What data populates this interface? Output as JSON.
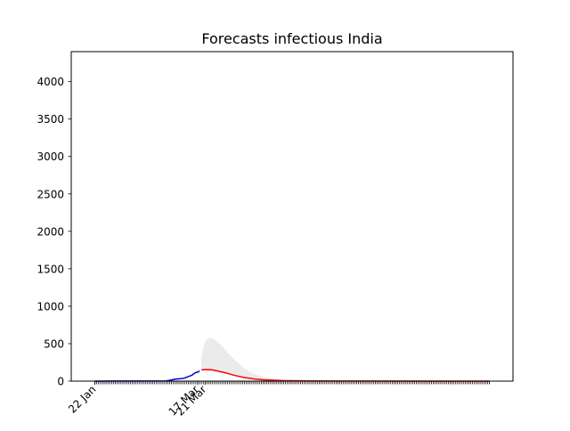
{
  "chart_data": {
    "type": "line",
    "title": "Forecasts infectious India",
    "xlabel": "",
    "ylabel": "",
    "x_range": [
      "2020-01-22",
      "2020-08-20"
    ],
    "ylim": [
      0,
      4400
    ],
    "y_ticks": [
      0,
      500,
      1000,
      1500,
      2000,
      2500,
      3000,
      3500,
      4000
    ],
    "x_ticks": [
      {
        "date": "2020-01-22",
        "label": "22 Jan"
      },
      {
        "date": "2020-03-17",
        "label": "17 Mar"
      },
      {
        "date": "2020-03-21",
        "label": "21 Mar"
      }
    ],
    "grid": false,
    "legend": "none",
    "minor_ticks": "daily",
    "series": [
      {
        "role": "observed",
        "color": "#0000cc",
        "points": [
          [
            "2020-01-22",
            0
          ],
          [
            "2020-02-01",
            1
          ],
          [
            "2020-02-15",
            2
          ],
          [
            "2020-02-29",
            3
          ],
          [
            "2020-03-02",
            10
          ],
          [
            "2020-03-05",
            27
          ],
          [
            "2020-03-08",
            32
          ],
          [
            "2020-03-10",
            42
          ],
          [
            "2020-03-12",
            60
          ],
          [
            "2020-03-14",
            80
          ],
          [
            "2020-03-15",
            100
          ],
          [
            "2020-03-16",
            115
          ],
          [
            "2020-03-17",
            120
          ],
          [
            "2020-03-18",
            137
          ]
        ]
      },
      {
        "role": "forecast",
        "color": "#ff0000",
        "points": [
          [
            "2020-03-19",
            150
          ],
          [
            "2020-03-21",
            155
          ],
          [
            "2020-03-24",
            153
          ],
          [
            "2020-03-27",
            140
          ],
          [
            "2020-04-01",
            110
          ],
          [
            "2020-04-06",
            75
          ],
          [
            "2020-04-11",
            48
          ],
          [
            "2020-04-16",
            30
          ],
          [
            "2020-04-21",
            18
          ],
          [
            "2020-05-01",
            8
          ],
          [
            "2020-05-16",
            3
          ],
          [
            "2020-06-05",
            1
          ],
          [
            "2020-08-20",
            0
          ]
        ]
      }
    ],
    "band": {
      "color": "#ebebeb",
      "points": [
        [
          "2020-03-19",
          150,
          330
        ],
        [
          "2020-03-20",
          145,
          450
        ],
        [
          "2020-03-21",
          143,
          525
        ],
        [
          "2020-03-23",
          140,
          580
        ],
        [
          "2020-03-25",
          135,
          575
        ],
        [
          "2020-03-27",
          125,
          540
        ],
        [
          "2020-03-30",
          110,
          470
        ],
        [
          "2020-04-02",
          95,
          380
        ],
        [
          "2020-04-06",
          72,
          280
        ],
        [
          "2020-04-10",
          52,
          190
        ],
        [
          "2020-04-14",
          36,
          125
        ],
        [
          "2020-04-19",
          22,
          70
        ],
        [
          "2020-04-26",
          11,
          32
        ],
        [
          "2020-05-06",
          4,
          12
        ],
        [
          "2020-05-21",
          1,
          3
        ],
        [
          "2020-06-20",
          0,
          1
        ],
        [
          "2020-08-20",
          0,
          0
        ]
      ]
    }
  }
}
